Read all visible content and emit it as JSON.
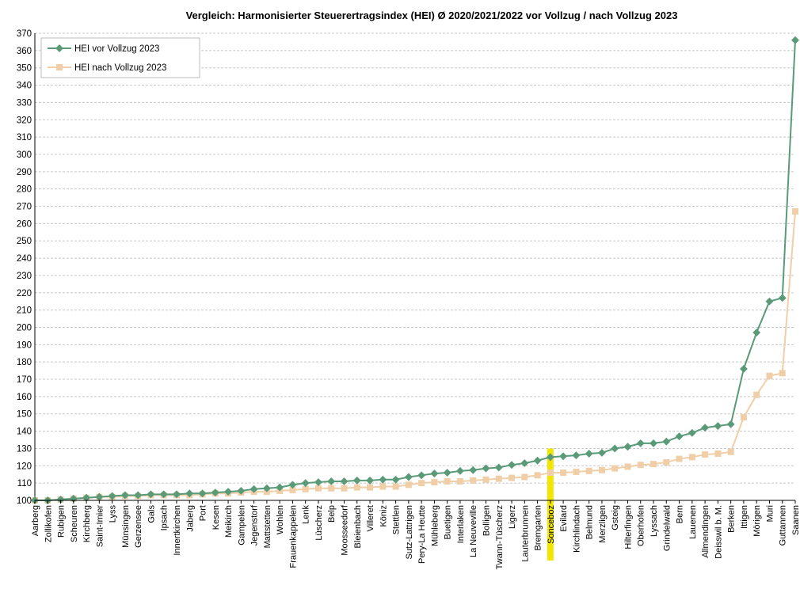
{
  "chart_data": {
    "type": "line",
    "title": "Vergleich: Harmonisierter Steuerertragsindex (HEI) Ø 2020/2021/2022 vor Vollzug  /  nach Vollzug 2023",
    "xlabel": "",
    "ylabel": "",
    "ylim": [
      100,
      370
    ],
    "yticks": [
      100,
      110,
      120,
      130,
      140,
      150,
      160,
      170,
      180,
      190,
      200,
      210,
      220,
      230,
      240,
      250,
      260,
      270,
      280,
      290,
      300,
      310,
      320,
      330,
      340,
      350,
      360,
      370
    ],
    "grid": true,
    "legend_position": "top-left",
    "highlight_category": "Sonceboz",
    "highlight_color": "#f2e600",
    "categories": [
      "Aarberg",
      "Zollikofen",
      "Rubigen",
      "Scheuren",
      "Kirchberg",
      "Saint-Imier",
      "Lyss",
      "Münsingen",
      "Gerzensee",
      "Gals",
      "Ipsach",
      "Innertkirchen",
      "Jaberg",
      "Port",
      "Kesen",
      "Meikirch",
      "Gampelen",
      "Jegenstorf",
      "Mattstetten",
      "Wohlen",
      "Frauenkappelen",
      "Lenk",
      "Lüscherz",
      "Belp",
      "Moosseedorf",
      "Bleienbach",
      "Villeret",
      "Köniz",
      "Stettlen",
      "Sutz-Lattrigen",
      "Pery-La Heutte",
      "Mühleberg",
      "Buetigen",
      "Interlaken",
      "La Neuveville",
      "Bolligen",
      "Twann-Tüscherz",
      "Ligerz",
      "Lauterbrunnen",
      "Bremgarten",
      "Sonceboz",
      "Evilard",
      "Kirchlindach",
      "Belmund",
      "Merzligen",
      "Gsteig",
      "Hilterfingen",
      "Oberhofen",
      "Lyssach",
      "Grindelwald",
      "Bern",
      "Lauenen",
      "Allmendingen",
      "Deisswil b. M.",
      "Berken",
      "Ittigen",
      "Mörigen",
      "Muri",
      "Guttannen",
      "Saanen"
    ],
    "series": [
      {
        "name": "HEI vor Vollzug 2023",
        "color": "#5a9a78",
        "marker": "diamond",
        "values": [
          100,
          100,
          100.5,
          101,
          101.5,
          102,
          102.5,
          103,
          103,
          103.5,
          103.5,
          103.5,
          104,
          104,
          104.5,
          105,
          105.5,
          106.5,
          107,
          107.5,
          109,
          110,
          110.5,
          111,
          111,
          111.5,
          111.5,
          112,
          112,
          113.5,
          114.5,
          115.5,
          116,
          117,
          117.5,
          118.5,
          119,
          120.5,
          121.5,
          123,
          125,
          125.5,
          126,
          127,
          127.5,
          130,
          131,
          133,
          133,
          134,
          137,
          139,
          142,
          143,
          144,
          176,
          197,
          215,
          217,
          366
        ]
      },
      {
        "name": "HEI nach Vollzug 2023",
        "color": "#f0cfa8",
        "marker": "square",
        "values": [
          100,
          100,
          100.5,
          101,
          101.5,
          102,
          102,
          102.5,
          102.5,
          103,
          103,
          103,
          103,
          103.5,
          104,
          104,
          104.5,
          105,
          105,
          105.5,
          106,
          106.5,
          107,
          107,
          107,
          107.5,
          107.5,
          108,
          108,
          109,
          110,
          110.5,
          111,
          111,
          111.5,
          112,
          112.5,
          113,
          113.5,
          114.5,
          116,
          116,
          116.5,
          117,
          117.5,
          118.5,
          119.5,
          120.5,
          121,
          122,
          124,
          125,
          126.5,
          127,
          128,
          148,
          161,
          172,
          173.5,
          267
        ]
      }
    ]
  }
}
